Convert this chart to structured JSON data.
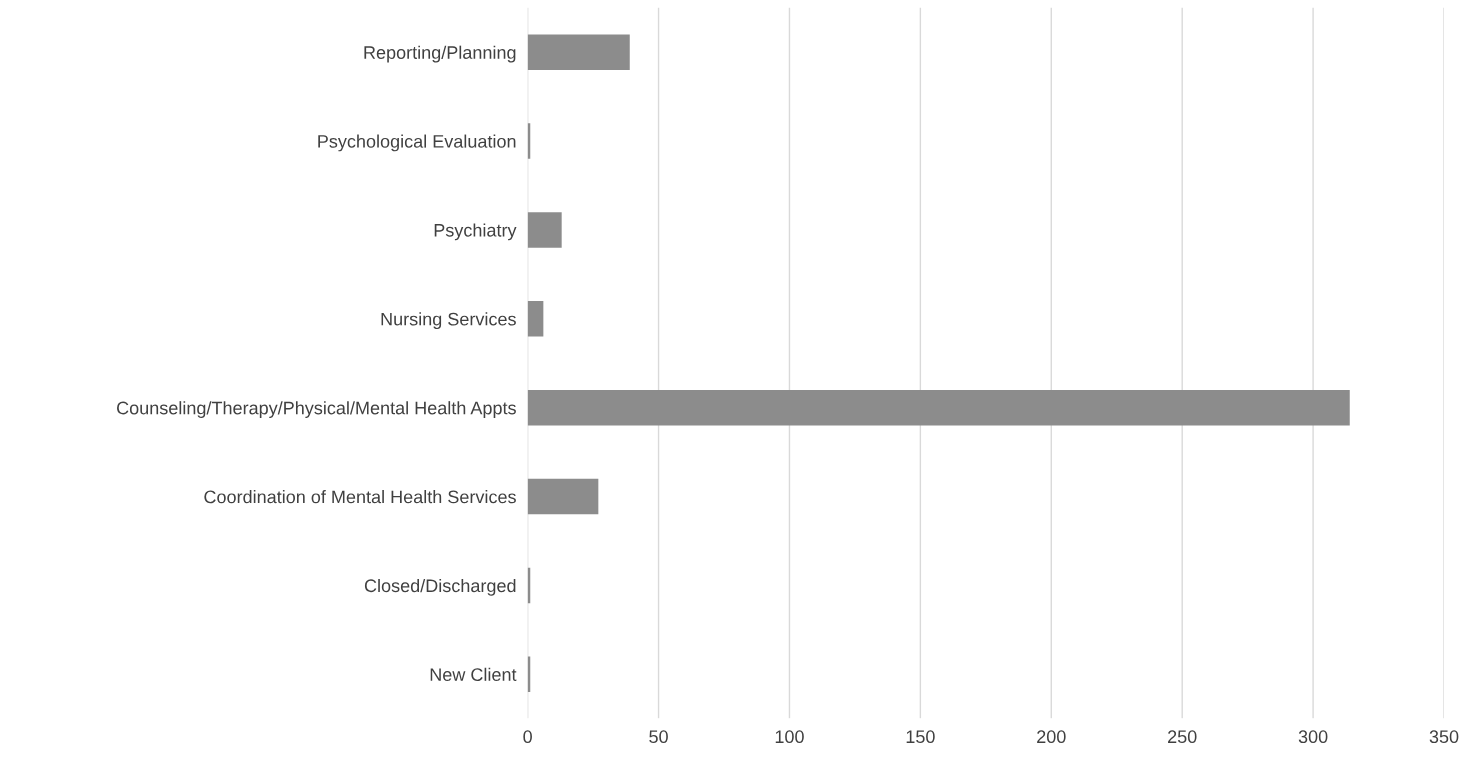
{
  "chart_data": {
    "type": "bar",
    "orientation": "horizontal",
    "categories": [
      "Reporting/Planning",
      "Psychological Evaluation",
      "Psychiatry",
      "Nursing Services",
      "Counseling/Therapy/Physical/Mental Health Appts",
      "Coordination of Mental Health Services",
      "Closed/Discharged",
      "New Client"
    ],
    "values": [
      39,
      1,
      13,
      6,
      314,
      27,
      1,
      1
    ],
    "color": "#8c8c8c",
    "xlim": [
      0,
      350
    ],
    "xticks": [
      0,
      50,
      100,
      150,
      200,
      250,
      300,
      350
    ],
    "grid": "x",
    "legend": false
  }
}
